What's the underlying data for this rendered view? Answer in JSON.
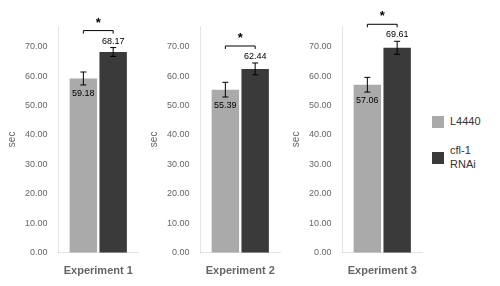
{
  "chart_data": [
    {
      "type": "bar",
      "x_label": "Experiment 1",
      "y_label": "sec",
      "categories": [
        null
      ],
      "series": [
        {
          "name": "L4440",
          "color": "#aaaaaa",
          "values": [
            59.18
          ],
          "errors": [
            2.2
          ]
        },
        {
          "name": "cfl-1\nRNAi",
          "color": "#3a3a3a",
          "values": [
            68.17
          ],
          "errors": [
            1.5
          ]
        }
      ],
      "ylim": [
        0,
        77
      ],
      "yticks": [
        {
          "value": 0,
          "label": "0.00"
        },
        {
          "value": 10,
          "label": "10.00"
        },
        {
          "value": 20,
          "label": "20.00"
        },
        {
          "value": 30,
          "label": "30.00"
        },
        {
          "value": 40,
          "label": "40.00"
        },
        {
          "value": 50,
          "label": "50.00"
        },
        {
          "value": 60,
          "label": "60.00"
        },
        {
          "value": 70,
          "label": "70.00"
        }
      ],
      "grid": false,
      "data_labels": true,
      "tick_labels": "y",
      "annotations": [
        "*"
      ]
    },
    {
      "type": "bar",
      "x_label": "Experiment 2",
      "y_label": "sec",
      "categories": [
        null
      ],
      "series": [
        {
          "name": "L4440",
          "color": "#aaaaaa",
          "values": [
            55.39
          ],
          "errors": [
            2.5
          ]
        },
        {
          "name": "cfl-1\nRNAi",
          "color": "#3a3a3a",
          "values": [
            62.44
          ],
          "errors": [
            2.0
          ]
        }
      ],
      "ylim": [
        0,
        77
      ],
      "yticks": [
        {
          "value": 0,
          "label": "0.00"
        },
        {
          "value": 10,
          "label": "10.00"
        },
        {
          "value": 20,
          "label": "20.00"
        },
        {
          "value": 30,
          "label": "30.00"
        },
        {
          "value": 40,
          "label": "40.00"
        },
        {
          "value": 50,
          "label": "50.00"
        },
        {
          "value": 60,
          "label": "60.00"
        },
        {
          "value": 70,
          "label": "70.00"
        }
      ],
      "grid": false,
      "data_labels": true,
      "tick_labels": "y",
      "annotations": [
        "*"
      ]
    },
    {
      "type": "bar",
      "x_label": "Experiment 3",
      "y_label": "sec",
      "categories": [
        null
      ],
      "series": [
        {
          "name": "L4440",
          "color": "#aaaaaa",
          "values": [
            57.06
          ],
          "errors": [
            2.5
          ]
        },
        {
          "name": "cfl-1\nRNAi",
          "color": "#3a3a3a",
          "values": [
            69.61
          ],
          "errors": [
            2.2
          ]
        }
      ],
      "ylim": [
        0,
        77
      ],
      "yticks": [
        {
          "value": 0,
          "label": "0.00"
        },
        {
          "value": 10,
          "label": "10.00"
        },
        {
          "value": 20,
          "label": "20.00"
        },
        {
          "value": 30,
          "label": "30.00"
        },
        {
          "value": 40,
          "label": "40.00"
        },
        {
          "value": 50,
          "label": "50.00"
        },
        {
          "value": 60,
          "label": "60.00"
        },
        {
          "value": 70,
          "label": "70.00"
        }
      ],
      "grid": false,
      "data_labels": true,
      "tick_labels": "y",
      "annotations": [
        "*"
      ],
      "legend": "right"
    }
  ]
}
